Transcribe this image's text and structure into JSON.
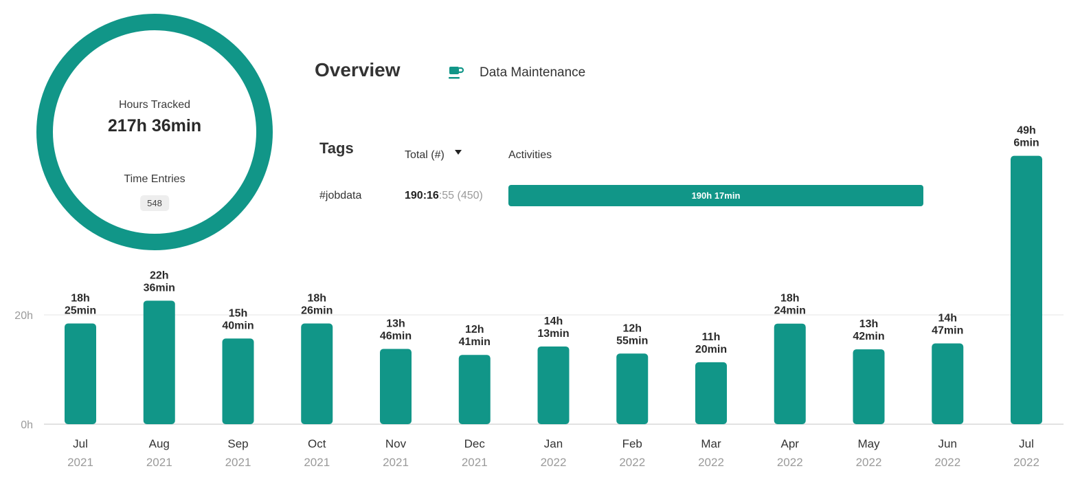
{
  "summary": {
    "hours_tracked_label": "Hours Tracked",
    "hours_tracked_value": "217h 36min",
    "time_entries_label": "Time Entries",
    "time_entries_value": "548",
    "ring_color": "#119688"
  },
  "overview": {
    "title": "Overview",
    "project_icon": "coffee-cup-icon",
    "project_name": "Data Maintenance"
  },
  "tags": {
    "title": "Tags",
    "col_total": "Total (#)",
    "sort_icon": "caret-down-icon",
    "col_activities": "Activities",
    "rows": [
      {
        "name": "#jobdata",
        "total_hm": "190:16",
        "total_sec": ":55",
        "count": "(450)",
        "bar_label": "190h 17min",
        "share": 1.0
      }
    ]
  },
  "chart_data": {
    "type": "bar",
    "unit": "hours",
    "ylim": [
      0,
      49.1
    ],
    "y_ticks": [
      {
        "value": 0,
        "label": "0h"
      },
      {
        "value": 20,
        "label": "20h"
      }
    ],
    "grid": true,
    "bar_color": "#119688",
    "categories": [
      {
        "month": "Jul",
        "year": "2021"
      },
      {
        "month": "Aug",
        "year": "2021"
      },
      {
        "month": "Sep",
        "year": "2021"
      },
      {
        "month": "Oct",
        "year": "2021"
      },
      {
        "month": "Nov",
        "year": "2021"
      },
      {
        "month": "Dec",
        "year": "2021"
      },
      {
        "month": "Jan",
        "year": "2022"
      },
      {
        "month": "Feb",
        "year": "2022"
      },
      {
        "month": "Mar",
        "year": "2022"
      },
      {
        "month": "Apr",
        "year": "2022"
      },
      {
        "month": "May",
        "year": "2022"
      },
      {
        "month": "Jun",
        "year": "2022"
      },
      {
        "month": "Jul",
        "year": "2022"
      }
    ],
    "values": [
      18.42,
      22.6,
      15.67,
      18.43,
      13.77,
      12.68,
      14.22,
      12.92,
      11.33,
      18.4,
      13.7,
      14.78,
      49.1
    ],
    "labels": [
      [
        "18h",
        "25min"
      ],
      [
        "22h",
        "36min"
      ],
      [
        "15h",
        "40min"
      ],
      [
        "18h",
        "26min"
      ],
      [
        "13h",
        "46min"
      ],
      [
        "12h",
        "41min"
      ],
      [
        "14h",
        "13min"
      ],
      [
        "12h",
        "55min"
      ],
      [
        "11h",
        "20min"
      ],
      [
        "18h",
        "24min"
      ],
      [
        "13h",
        "42min"
      ],
      [
        "14h",
        "47min"
      ],
      [
        "49h",
        "6min"
      ]
    ]
  }
}
